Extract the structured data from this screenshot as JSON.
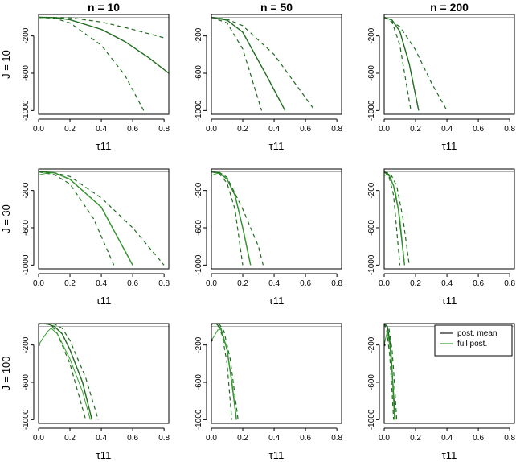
{
  "chart_data": {
    "type": "line",
    "colors": {
      "post_mean": "#1a1a1a",
      "full_post": "#33a02c",
      "mean_dark_green": "#1e6b1e",
      "reference": "#b0b0b0"
    },
    "column_titles": [
      "n = 10",
      "n = 50",
      "n = 200"
    ],
    "row_titles": [
      "J = 10",
      "J = 30",
      "J = 100"
    ],
    "xlabel": "τ11",
    "xlim": [
      0,
      0.83
    ],
    "ylim": [
      -1040,
      30
    ],
    "x_ticks": [
      0,
      0.2,
      0.4,
      0.6,
      0.8
    ],
    "x_tick_labels": [
      "0.0",
      "0.2",
      "0.4",
      "0.6",
      "0.8"
    ],
    "y_ticks": [
      -200,
      -600,
      -1000
    ],
    "y_tick_labels": [
      "-200",
      "-600",
      "-1000"
    ],
    "reference_line": 0,
    "legend": {
      "entries": [
        "post. mean",
        "full post."
      ]
    },
    "panels": [
      {
        "row": 0,
        "col": 0,
        "curves": [
          {
            "kind": "mean",
            "points": [
              [
                0,
                0
              ],
              [
                0.1,
                -3
              ],
              [
                0.2,
                -25
              ],
              [
                0.4,
                -130
              ],
              [
                0.55,
                -260
              ],
              [
                0.7,
                -430
              ],
              [
                0.83,
                -600
              ]
            ]
          },
          {
            "kind": "upper",
            "points": [
              [
                0,
                0
              ],
              [
                0.2,
                -5
              ],
              [
                0.4,
                -50
              ],
              [
                0.6,
                -130
              ],
              [
                0.8,
                -220
              ]
            ]
          },
          {
            "kind": "lower",
            "points": [
              [
                0,
                0
              ],
              [
                0.1,
                -10
              ],
              [
                0.2,
                -60
              ],
              [
                0.4,
                -300
              ],
              [
                0.55,
                -620
              ],
              [
                0.67,
                -1000
              ]
            ]
          }
        ]
      },
      {
        "row": 0,
        "col": 1,
        "curves": [
          {
            "kind": "mean",
            "points": [
              [
                0,
                0
              ],
              [
                0.1,
                -30
              ],
              [
                0.2,
                -160
              ],
              [
                0.35,
                -620
              ],
              [
                0.47,
                -1000
              ]
            ]
          },
          {
            "kind": "upper",
            "points": [
              [
                0,
                0
              ],
              [
                0.1,
                -20
              ],
              [
                0.2,
                -90
              ],
              [
                0.4,
                -400
              ],
              [
                0.66,
                -1000
              ]
            ]
          },
          {
            "kind": "lower",
            "points": [
              [
                0,
                0
              ],
              [
                0.1,
                -60
              ],
              [
                0.2,
                -340
              ],
              [
                0.32,
                -1000
              ]
            ]
          }
        ]
      },
      {
        "row": 0,
        "col": 2,
        "curves": [
          {
            "kind": "mean",
            "points": [
              [
                0,
                0
              ],
              [
                0.05,
                -30
              ],
              [
                0.1,
                -150
              ],
              [
                0.16,
                -500
              ],
              [
                0.22,
                -1000
              ]
            ]
          },
          {
            "kind": "upper",
            "points": [
              [
                0,
                0
              ],
              [
                0.1,
                -100
              ],
              [
                0.2,
                -350
              ],
              [
                0.3,
                -700
              ],
              [
                0.4,
                -1000
              ]
            ]
          },
          {
            "kind": "lower",
            "points": [
              [
                0,
                0
              ],
              [
                0.05,
                -50
              ],
              [
                0.1,
                -300
              ],
              [
                0.17,
                -1000
              ]
            ]
          }
        ]
      },
      {
        "row": 1,
        "col": 0,
        "curves": [
          {
            "kind": "mean",
            "points": [
              [
                0,
                0
              ],
              [
                0.05,
                -3
              ],
              [
                0.1,
                -10
              ],
              [
                0.2,
                -80
              ],
              [
                0.4,
                -380
              ],
              [
                0.6,
                -1000
              ]
            ]
          },
          {
            "kind": "upper",
            "points": [
              [
                0,
                0
              ],
              [
                0.1,
                -10
              ],
              [
                0.2,
                -50
              ],
              [
                0.4,
                -280
              ],
              [
                0.6,
                -600
              ],
              [
                0.8,
                -1000
              ]
            ]
          },
          {
            "kind": "lower",
            "points": [
              [
                0,
                0
              ],
              [
                0.1,
                -30
              ],
              [
                0.2,
                -130
              ],
              [
                0.35,
                -500
              ],
              [
                0.48,
                -1000
              ]
            ]
          },
          {
            "kind": "full",
            "points": [
              [
                0,
                -35
              ],
              [
                0.05,
                -15
              ],
              [
                0.1,
                -10
              ],
              [
                0.2,
                -80
              ],
              [
                0.4,
                -380
              ],
              [
                0.6,
                -1000
              ]
            ]
          }
        ]
      },
      {
        "row": 1,
        "col": 1,
        "curves": [
          {
            "kind": "mean",
            "points": [
              [
                0,
                0
              ],
              [
                0.05,
                -10
              ],
              [
                0.1,
                -80
              ],
              [
                0.15,
                -250
              ],
              [
                0.2,
                -600
              ],
              [
                0.25,
                -1000
              ]
            ]
          },
          {
            "kind": "upper",
            "points": [
              [
                0,
                0
              ],
              [
                0.05,
                -5
              ],
              [
                0.1,
                -60
              ],
              [
                0.2,
                -400
              ],
              [
                0.3,
                -800
              ],
              [
                0.33,
                -1000
              ]
            ]
          },
          {
            "kind": "lower",
            "points": [
              [
                0,
                0
              ],
              [
                0.05,
                -20
              ],
              [
                0.1,
                -120
              ],
              [
                0.15,
                -400
              ],
              [
                0.2,
                -1000
              ]
            ]
          },
          {
            "kind": "full",
            "points": [
              [
                0,
                -40
              ],
              [
                0.03,
                -20
              ],
              [
                0.05,
                -15
              ],
              [
                0.1,
                -80
              ],
              [
                0.15,
                -250
              ],
              [
                0.2,
                -600
              ],
              [
                0.25,
                -1000
              ]
            ]
          }
        ]
      },
      {
        "row": 1,
        "col": 2,
        "curves": [
          {
            "kind": "mean",
            "points": [
              [
                0,
                0
              ],
              [
                0.03,
                -30
              ],
              [
                0.06,
                -150
              ],
              [
                0.09,
                -400
              ],
              [
                0.13,
                -1000
              ]
            ]
          },
          {
            "kind": "upper",
            "points": [
              [
                0,
                0
              ],
              [
                0.04,
                -20
              ],
              [
                0.08,
                -150
              ],
              [
                0.12,
                -500
              ],
              [
                0.16,
                -1000
              ]
            ]
          },
          {
            "kind": "lower",
            "points": [
              [
                0,
                0
              ],
              [
                0.03,
                -50
              ],
              [
                0.06,
                -250
              ],
              [
                0.1,
                -1000
              ]
            ]
          },
          {
            "kind": "full",
            "points": [
              [
                0,
                -40
              ],
              [
                0.02,
                -30
              ],
              [
                0.04,
                -60
              ],
              [
                0.07,
                -200
              ],
              [
                0.1,
                -500
              ],
              [
                0.13,
                -1000
              ]
            ]
          }
        ]
      },
      {
        "row": 2,
        "col": 0,
        "curves": [
          {
            "kind": "mean",
            "points": [
              [
                0,
                30
              ],
              [
                0.05,
                30
              ],
              [
                0.1,
                0
              ],
              [
                0.15,
                -80
              ],
              [
                0.2,
                -250
              ],
              [
                0.28,
                -600
              ],
              [
                0.34,
                -1000
              ]
            ]
          },
          {
            "kind": "upper",
            "points": [
              [
                0,
                30
              ],
              [
                0.1,
                25
              ],
              [
                0.15,
                -20
              ],
              [
                0.2,
                -150
              ],
              [
                0.3,
                -550
              ],
              [
                0.38,
                -1000
              ]
            ]
          },
          {
            "kind": "lower",
            "points": [
              [
                0,
                30
              ],
              [
                0.08,
                20
              ],
              [
                0.12,
                -80
              ],
              [
                0.2,
                -400
              ],
              [
                0.3,
                -1000
              ]
            ]
          },
          {
            "kind": "full",
            "points": [
              [
                0,
                -200
              ],
              [
                0.03,
                -120
              ],
              [
                0.06,
                -50
              ],
              [
                0.08,
                -20
              ],
              [
                0.12,
                -80
              ],
              [
                0.2,
                -350
              ],
              [
                0.28,
                -700
              ],
              [
                0.33,
                -1000
              ]
            ]
          }
        ]
      },
      {
        "row": 2,
        "col": 1,
        "curves": [
          {
            "kind": "mean",
            "points": [
              [
                0,
                30
              ],
              [
                0.03,
                30
              ],
              [
                0.06,
                -20
              ],
              [
                0.1,
                -250
              ],
              [
                0.13,
                -600
              ],
              [
                0.16,
                -1000
              ]
            ]
          },
          {
            "kind": "upper",
            "points": [
              [
                0,
                30
              ],
              [
                0.05,
                25
              ],
              [
                0.08,
                -50
              ],
              [
                0.12,
                -350
              ],
              [
                0.17,
                -1000
              ]
            ]
          },
          {
            "kind": "lower",
            "points": [
              [
                0,
                30
              ],
              [
                0.04,
                20
              ],
              [
                0.07,
                -100
              ],
              [
                0.1,
                -400
              ],
              [
                0.13,
                -1000
              ]
            ]
          },
          {
            "kind": "full",
            "points": [
              [
                0,
                -150
              ],
              [
                0.02,
                -100
              ],
              [
                0.04,
                -40
              ],
              [
                0.06,
                -30
              ],
              [
                0.1,
                -250
              ],
              [
                0.13,
                -600
              ],
              [
                0.16,
                -1000
              ]
            ]
          }
        ]
      },
      {
        "row": 2,
        "col": 2,
        "curves": [
          {
            "kind": "mean",
            "points": [
              [
                0,
                30
              ],
              [
                0.02,
                0
              ],
              [
                0.04,
                -200
              ],
              [
                0.055,
                -600
              ],
              [
                0.07,
                -1000
              ]
            ]
          },
          {
            "kind": "upper",
            "points": [
              [
                0,
                30
              ],
              [
                0.03,
                -20
              ],
              [
                0.05,
                -250
              ],
              [
                0.065,
                -600
              ],
              [
                0.08,
                -1000
              ]
            ]
          },
          {
            "kind": "lower",
            "points": [
              [
                0,
                30
              ],
              [
                0.015,
                -30
              ],
              [
                0.035,
                -300
              ],
              [
                0.05,
                -700
              ],
              [
                0.06,
                -1000
              ]
            ]
          },
          {
            "kind": "full",
            "points": [
              [
                0,
                -200
              ],
              [
                0.01,
                -120
              ],
              [
                0.02,
                -60
              ],
              [
                0.035,
                -200
              ],
              [
                0.05,
                -500
              ],
              [
                0.065,
                -1000
              ]
            ]
          }
        ]
      }
    ]
  }
}
